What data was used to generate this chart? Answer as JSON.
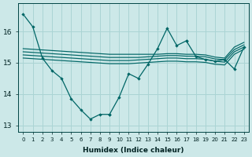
{
  "xlabel": "Humidex (Indice chaleur)",
  "bg_color": "#cce8e8",
  "grid_color": "#aad4d4",
  "line_color": "#006666",
  "xlim": [
    -0.5,
    23.5
  ],
  "ylim": [
    12.8,
    16.9
  ],
  "yticks": [
    13,
    14,
    15,
    16
  ],
  "xticks": [
    0,
    1,
    2,
    3,
    4,
    5,
    6,
    7,
    8,
    9,
    10,
    11,
    12,
    13,
    14,
    15,
    16,
    17,
    18,
    19,
    20,
    21,
    22,
    23
  ],
  "line1_x": [
    0,
    1,
    2,
    3,
    4,
    5,
    6,
    7,
    8,
    9
  ],
  "line1_y": [
    16.55,
    16.15,
    15.15,
    14.75,
    14.5,
    13.85,
    13.5,
    13.2,
    13.35,
    13.35
  ],
  "line2_x": [
    9,
    10,
    11,
    12,
    13,
    14,
    15,
    16,
    17
  ],
  "line2_y": [
    13.35,
    13.9,
    14.65,
    14.5,
    14.95,
    15.45,
    16.1,
    15.55,
    15.7
  ],
  "line3_x": [
    17,
    18,
    19,
    20,
    21,
    22,
    23
  ],
  "line3_y": [
    15.7,
    15.2,
    15.1,
    15.05,
    15.1,
    14.8,
    15.5
  ],
  "flat1_x": [
    0,
    1,
    2,
    3,
    4,
    5,
    6,
    7,
    8,
    9,
    10,
    11,
    12,
    13,
    14,
    15,
    16,
    17,
    18,
    19,
    20,
    21,
    22,
    23
  ],
  "flat1_y": [
    15.45,
    15.43,
    15.41,
    15.39,
    15.37,
    15.35,
    15.33,
    15.31,
    15.29,
    15.27,
    15.27,
    15.27,
    15.27,
    15.27,
    15.27,
    15.29,
    15.29,
    15.27,
    15.27,
    15.25,
    15.18,
    15.15,
    15.5,
    15.65
  ],
  "flat2_x": [
    0,
    1,
    2,
    3,
    4,
    5,
    6,
    7,
    8,
    9,
    10,
    11,
    12,
    13,
    14,
    15,
    16,
    17,
    18,
    19,
    20,
    21,
    22,
    23
  ],
  "flat2_y": [
    15.35,
    15.33,
    15.31,
    15.29,
    15.27,
    15.25,
    15.23,
    15.21,
    15.19,
    15.17,
    15.17,
    15.17,
    15.17,
    15.19,
    15.21,
    15.23,
    15.23,
    15.21,
    15.21,
    15.19,
    15.12,
    15.1,
    15.42,
    15.57
  ],
  "flat3_x": [
    0,
    1,
    2,
    3,
    4,
    5,
    6,
    7,
    8,
    9,
    10,
    11,
    12,
    13,
    14,
    15,
    16,
    17,
    18,
    19,
    20,
    21,
    22,
    23
  ],
  "flat3_y": [
    15.25,
    15.23,
    15.21,
    15.19,
    15.17,
    15.15,
    15.13,
    15.11,
    15.09,
    15.07,
    15.07,
    15.07,
    15.09,
    15.11,
    15.13,
    15.15,
    15.15,
    15.13,
    15.13,
    15.11,
    15.05,
    15.02,
    15.35,
    15.5
  ],
  "flat4_x": [
    0,
    1,
    2,
    3,
    4,
    5,
    6,
    7,
    8,
    9,
    10,
    11,
    12,
    13,
    14,
    15,
    16,
    17,
    18,
    19,
    20,
    21,
    22,
    23
  ],
  "flat4_y": [
    15.15,
    15.13,
    15.11,
    15.09,
    15.07,
    15.05,
    15.03,
    15.01,
    14.99,
    14.97,
    14.97,
    14.97,
    14.99,
    15.01,
    15.03,
    15.05,
    15.05,
    15.03,
    15.03,
    15.01,
    14.95,
    14.93,
    15.27,
    15.43
  ]
}
